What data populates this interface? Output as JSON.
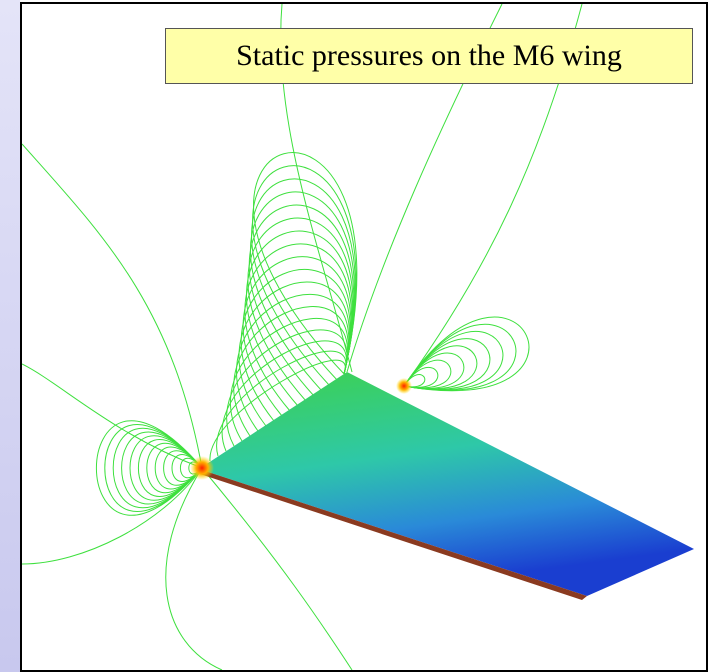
{
  "caption": {
    "text": "Static pressures on the M6 wing"
  }
}
